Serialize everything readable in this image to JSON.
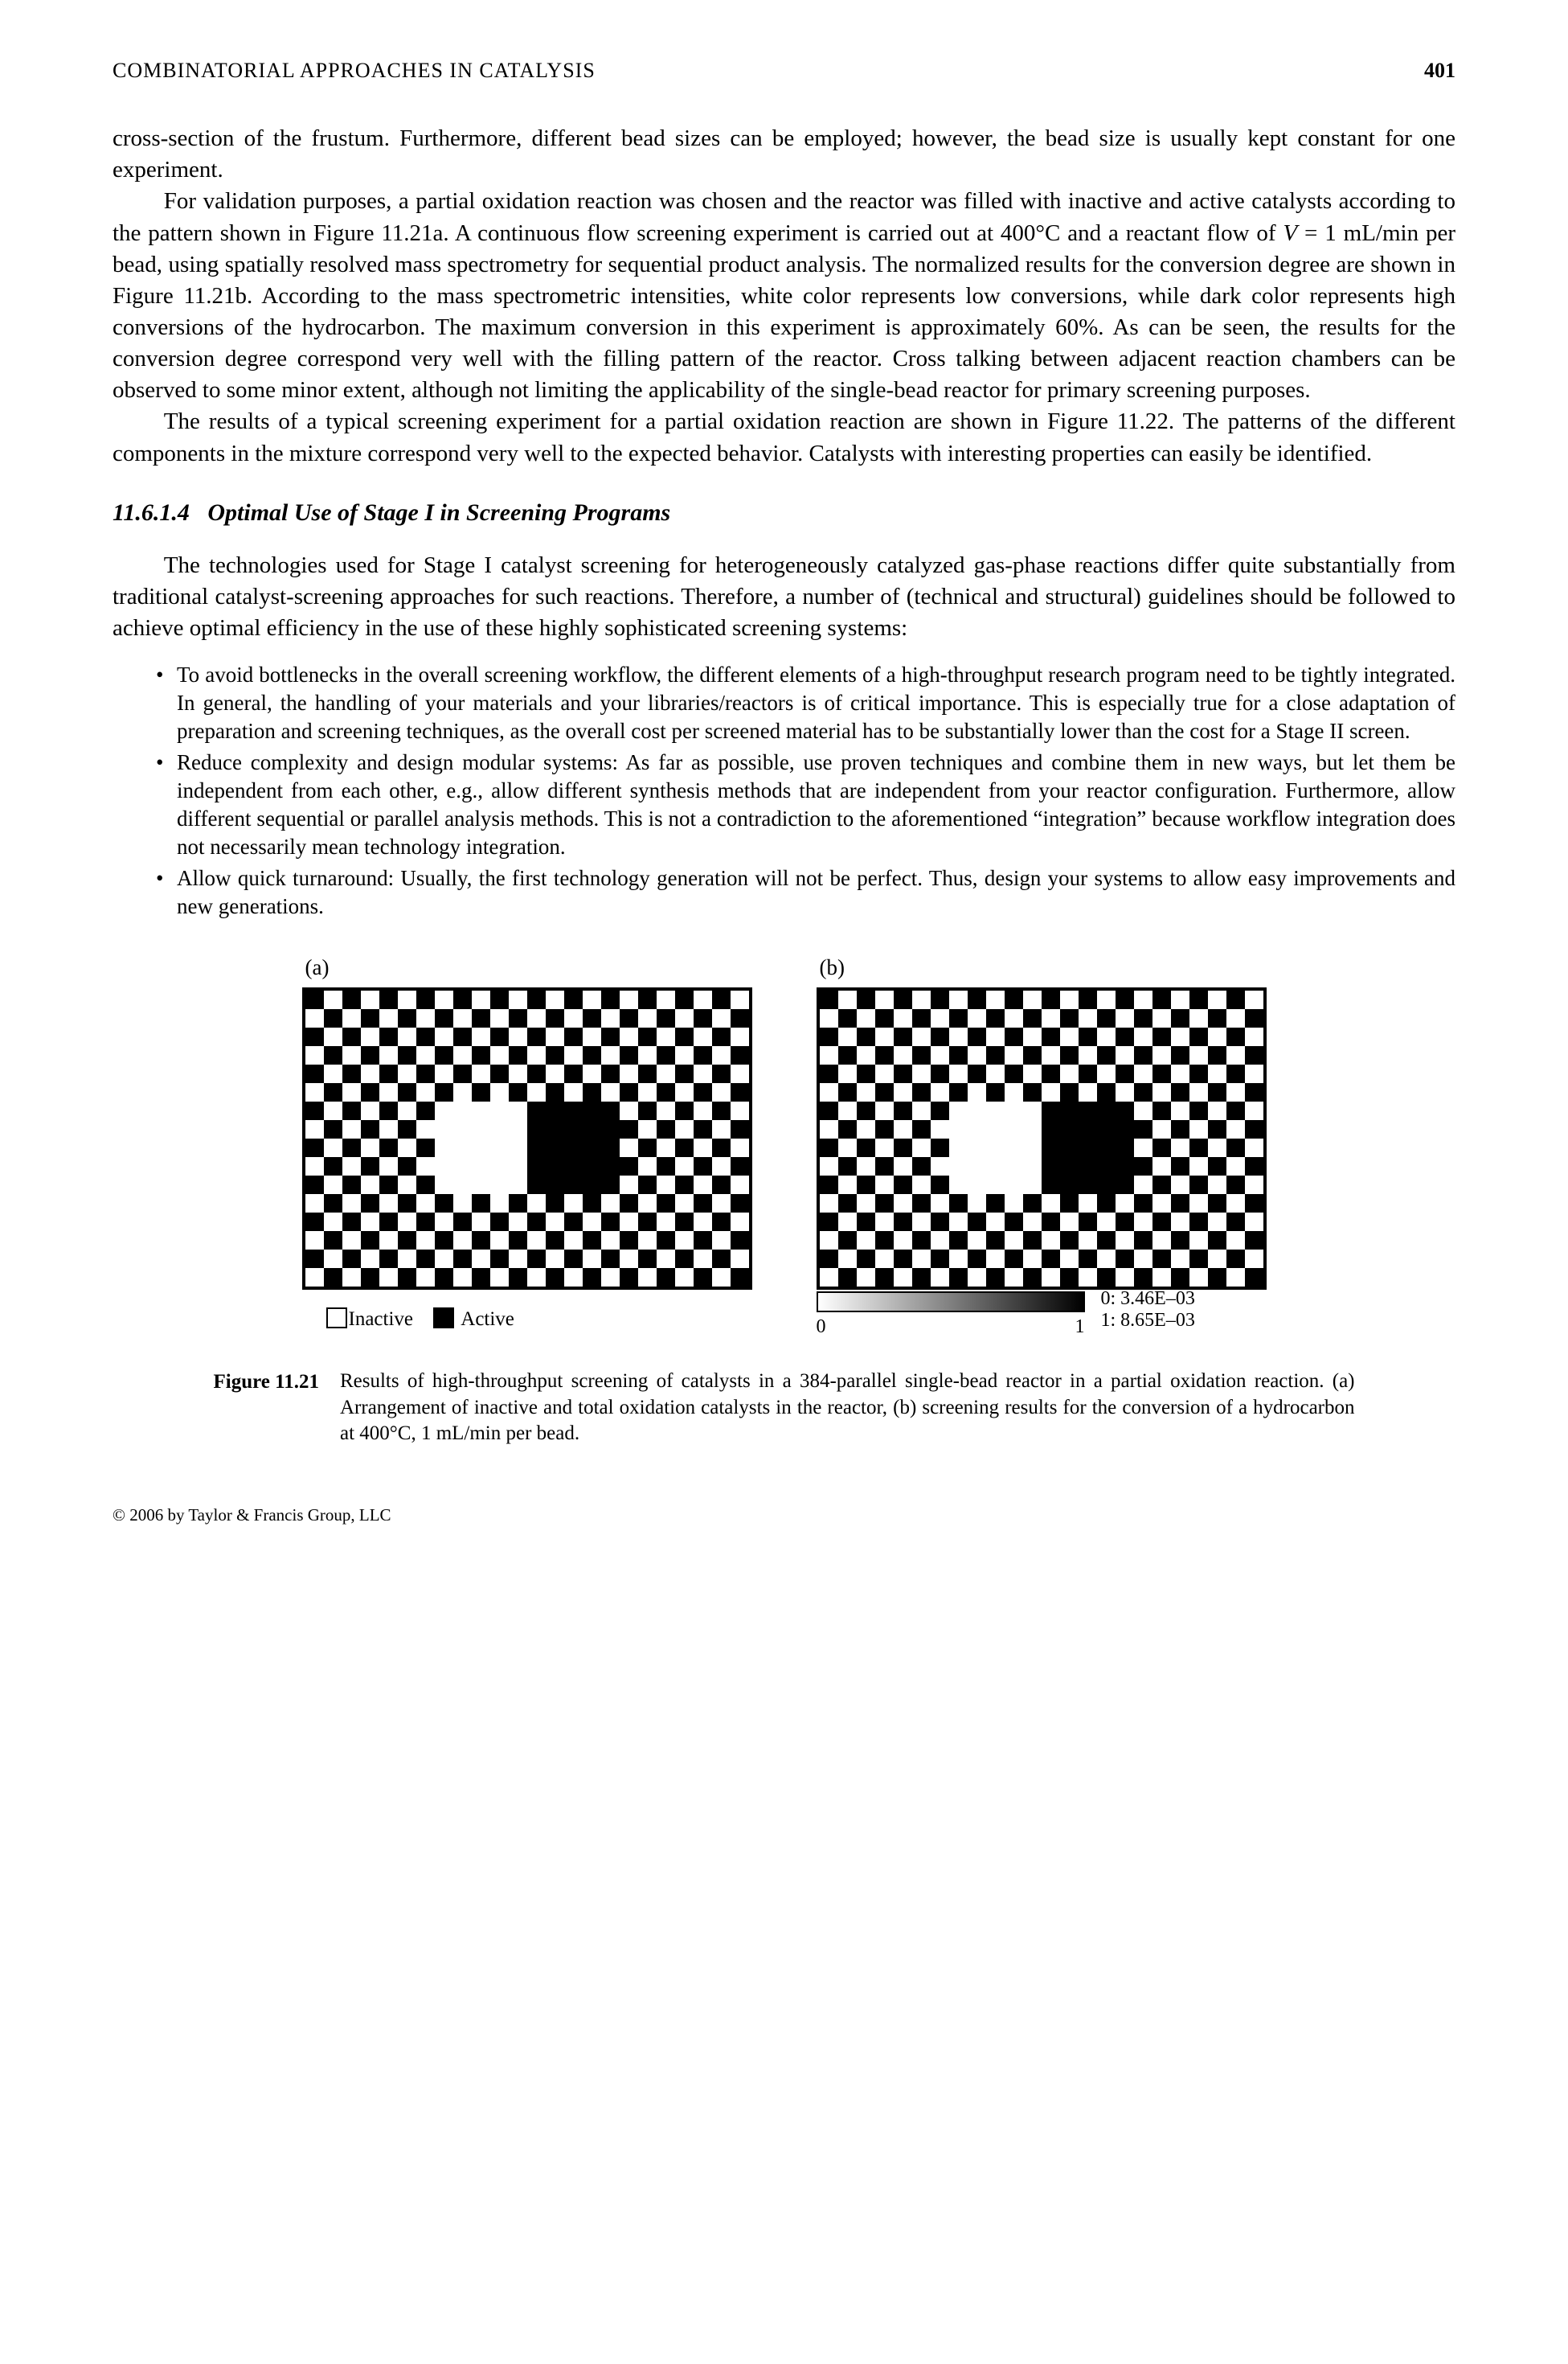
{
  "header": {
    "running_head": "COMBINATORIAL APPROACHES IN CATALYSIS",
    "page_number": "401"
  },
  "paragraphs": {
    "p1": "cross-section of the frustum. Furthermore, different bead sizes can be employed; however, the bead size is usually kept constant for one experiment.",
    "p2a": "For validation purposes, a partial oxidation reaction was chosen and the reactor was filled with inactive and active catalysts according to the pattern shown in Figure 11.21a. A continuous flow screening experiment is carried out at 400°C and a reactant flow of ",
    "p2b": "V",
    "p2c": " = 1 mL/min per bead, using spatially resolved mass spectrometry for sequential product analysis. The normalized results for the conversion degree are shown in Figure 11.21b. According to the mass spectrometric intensities, white color represents low conversions, while dark color represents high conversions of the hydrocarbon. The maximum conversion in this experiment is approximately 60%. As can be seen, the results for the conversion degree correspond very well with the filling pattern of the reactor. Cross talking between adjacent reaction chambers can be observed to some minor extent, although not limiting the applicability of the single-bead reactor for primary screening purposes.",
    "p3": "The results of a typical screening experiment for a partial oxidation reaction are shown in Figure 11.22. The patterns of the different components in the mixture correspond very well to the expected behavior. Catalysts with interesting properties can easily be identified.",
    "p4": "The technologies used for Stage I catalyst screening for heterogeneously catalyzed gas-phase reactions differ quite substantially from traditional catalyst-screening approaches for such reactions. Therefore, a number of (technical and structural) guidelines should be followed to achieve optimal efficiency in the use of these highly sophisticated screening systems:"
  },
  "section": {
    "number": "11.6.1.4",
    "title": "Optimal Use of Stage I in Screening Programs"
  },
  "bullets": [
    "To avoid bottlenecks in the overall screening workflow, the different elements of a high-throughput research program need to be tightly integrated. In general, the handling of your materials and your libraries/reactors is of critical importance. This is especially true for a close adaptation of preparation and screening techniques, as the overall cost per screened material has to be substantially lower than the cost for a Stage II screen.",
    "Reduce complexity and design modular systems: As far as possible, use proven techniques and combine them in new ways, but let them be independent from each other, e.g., allow different synthesis methods that are independent from your reactor configuration. Furthermore, allow different sequential or parallel analysis methods. This is not a contradiction to the aforementioned “integration” because workflow integration does not necessarily mean technology integration.",
    "Allow quick turnaround: Usually, the first technology generation will not be perfect. Thus, design your systems to allow easy improvements and new generations."
  ],
  "figure": {
    "labels": {
      "a": "(a)",
      "b": "(b)"
    },
    "legend_a": {
      "inactive": "Inactive",
      "active": "Active"
    },
    "axis": {
      "left": "0",
      "right": "1"
    },
    "scale": {
      "line1": "0: 3.46E–03",
      "line2": "1: 8.65E–03"
    },
    "grid": {
      "rows": 16,
      "cols": 24,
      "white_region": {
        "row_start": 6,
        "row_end": 10,
        "col_start": 7,
        "col_end": 11
      },
      "black_region": {
        "row_start": 6,
        "row_end": 10,
        "col_start": 12,
        "col_end": 16
      },
      "colors": {
        "black": "#000000",
        "white": "#ffffff"
      }
    },
    "caption_label": "Figure 11.21",
    "caption_text": "Results of high-throughput screening of catalysts in a 384-parallel single-bead reactor in a partial oxidation reaction. (a) Arrangement of inactive and total oxidation catalysts in the reactor, (b) screening results for the conversion of a hydrocarbon at 400°C, 1 mL/min per bead."
  },
  "footer": "© 2006 by Taylor & Francis Group, LLC"
}
